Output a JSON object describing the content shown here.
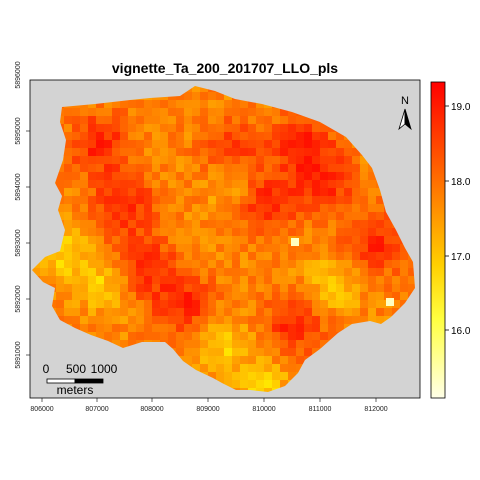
{
  "title": "vignette_Ta_200_201707_LLO_pls",
  "x_ticks": [
    "806000",
    "807000",
    "808000",
    "809000",
    "810000",
    "811000",
    "812000"
  ],
  "y_ticks": [
    "5891000",
    "5892000",
    "5893000",
    "5894000",
    "5895000",
    "5896000"
  ],
  "colorbar": {
    "ticks": [
      "19.0",
      "18.0",
      "17.0",
      "16.0"
    ],
    "colors": [
      "#ff0000",
      "#ff8000",
      "#ffff00",
      "#ffffe0"
    ]
  },
  "north_label": "N",
  "scale_bar": {
    "labels": [
      "0",
      "500",
      "1000"
    ],
    "unit": "meters"
  },
  "background_color": "#d3d3d3"
}
